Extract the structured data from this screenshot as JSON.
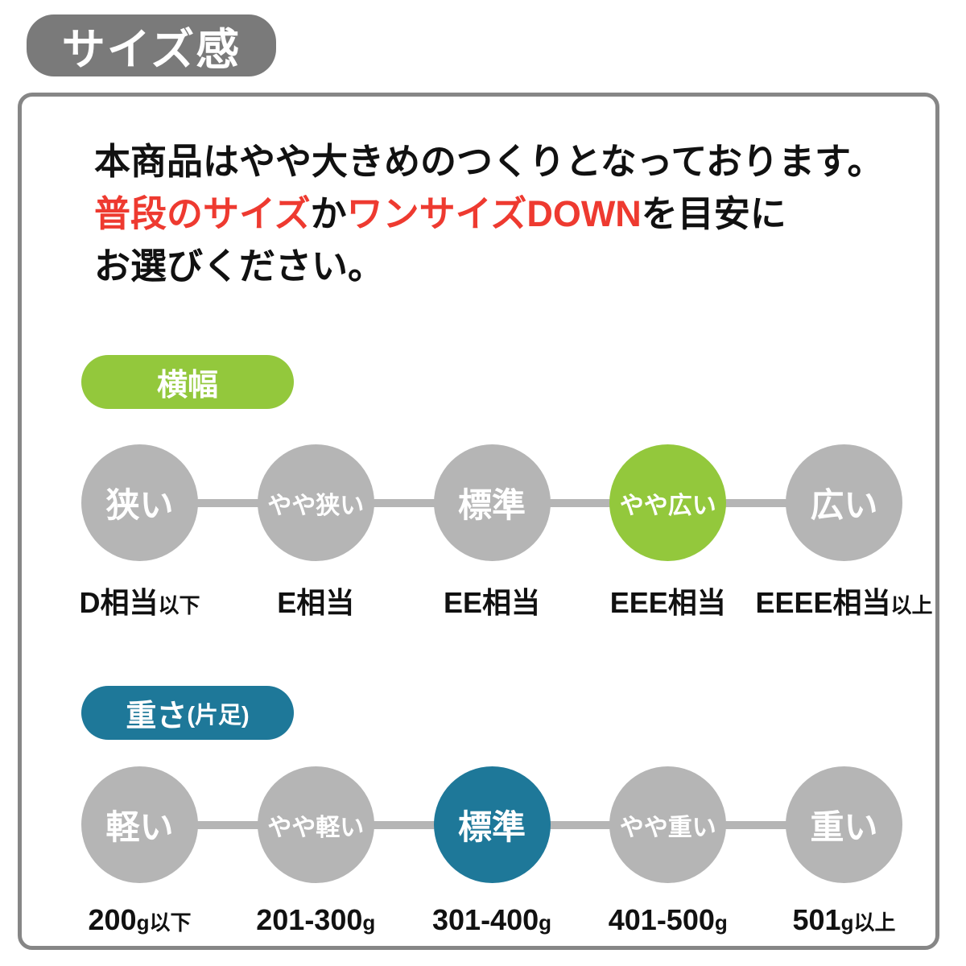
{
  "page_title": "サイズ感",
  "colors": {
    "badge_gray": "#7a7a7a",
    "border_gray": "#868686",
    "circle_gray": "#b5b5b5",
    "green": "#93c83c",
    "blue": "#1e7899",
    "red": "#ee3a30",
    "text_black": "#111111"
  },
  "description": {
    "line1": "本商品はやや大きめのつくりとなっております。",
    "line2_red1": "普段のサイズ",
    "line2_black1": "か",
    "line2_red2": "ワンサイズDOWN",
    "line2_black2": "を目安に",
    "line3": "お選びください。"
  },
  "width_section": {
    "badge_label": "横幅",
    "scale": [
      {
        "label": "狭い",
        "sub_main": "D相当",
        "sub_suffix": "以下",
        "selected": false
      },
      {
        "label": "やや狭い",
        "sub_main": "E相当",
        "sub_suffix": "",
        "selected": false
      },
      {
        "label": "標準",
        "sub_main": "EE相当",
        "sub_suffix": "",
        "selected": false
      },
      {
        "label": "やや広い",
        "sub_main": "EEE相当",
        "sub_suffix": "",
        "selected": true
      },
      {
        "label": "広い",
        "sub_main": "EEEE相当",
        "sub_suffix": "以上",
        "selected": false
      }
    ]
  },
  "weight_section": {
    "badge_label": "重さ",
    "badge_label_small": "(片足)",
    "scale": [
      {
        "label": "軽い",
        "sub_main": "200",
        "sub_suffix": "g以下",
        "selected": false
      },
      {
        "label": "やや軽い",
        "sub_main": "201-300",
        "sub_suffix": "g",
        "selected": false
      },
      {
        "label": "標準",
        "sub_main": "301-400",
        "sub_suffix": "g",
        "selected": true
      },
      {
        "label": "やや重い",
        "sub_main": "401-500",
        "sub_suffix": "g",
        "selected": false
      },
      {
        "label": "重い",
        "sub_main": "501",
        "sub_suffix": "g以上",
        "selected": false
      }
    ]
  }
}
